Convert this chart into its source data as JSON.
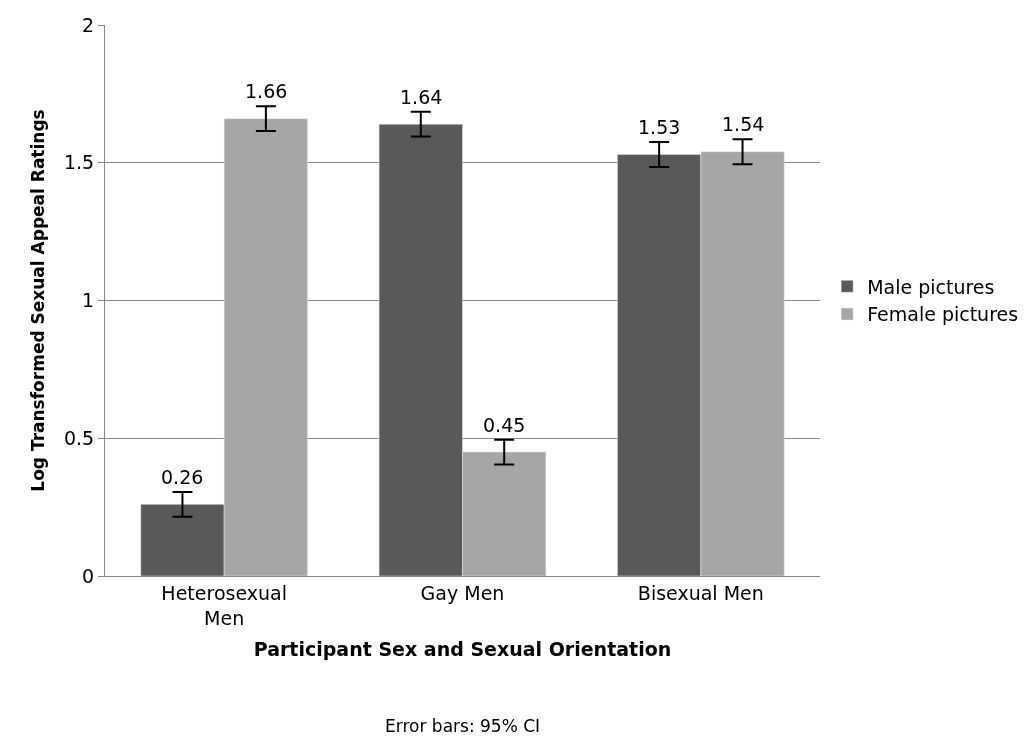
{
  "chart_data": {
    "type": "bar",
    "xlabel": "Participant Sex and Sexual Orientation",
    "ylabel": "Log Transformed Sexual Appeal Ratings",
    "categories": [
      "Heterosexual\nMen",
      "Gay Men",
      "Bisexual Men"
    ],
    "series": [
      {
        "name": "Male pictures",
        "color": "#595959",
        "values": [
          0.26,
          1.64,
          1.53
        ],
        "errors": [
          0.045,
          0.045,
          0.045
        ]
      },
      {
        "name": "Female pictures",
        "color": "#a6a6a6",
        "values": [
          1.66,
          0.45,
          1.54
        ],
        "errors": [
          0.045,
          0.045,
          0.045
        ]
      }
    ],
    "ylim": [
      0,
      2
    ],
    "yticks": [
      0,
      0.5,
      1,
      1.5,
      2
    ],
    "grid": "y",
    "legend": "right",
    "data_labels": true,
    "annotations": [
      "Error bars: 95% CI"
    ]
  }
}
